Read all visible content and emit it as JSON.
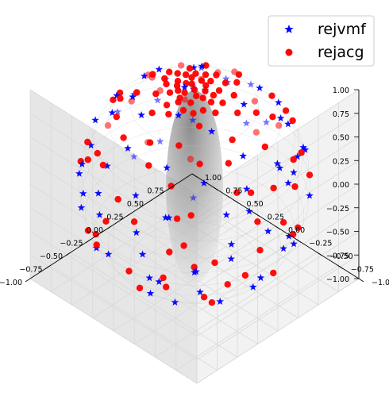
{
  "chart_data": {
    "type": "scatter",
    "projection": "3d",
    "title": "",
    "xlabel": "",
    "ylabel": "",
    "zlabel": "",
    "xlim": [
      -1.0,
      1.0
    ],
    "ylim": [
      -1.0,
      1.0
    ],
    "zlim": [
      -1.0,
      1.0
    ],
    "grid": true,
    "surface": "unit sphere (gray, semi-transparent)",
    "legend_position": "top-right",
    "x_ticks": [
      "−1.00",
      "−0.75",
      "−0.50",
      "−0.25",
      "0.00",
      "0.25",
      "0.50",
      "0.75",
      "1.00"
    ],
    "y_ticks": [
      "−1.00",
      "−0.75",
      "−0.50",
      "−0.25",
      "0.00",
      "0.25",
      "0.50",
      "0.75"
    ],
    "z_ticks": [
      "1.00",
      "0.75",
      "0.50",
      "0.25",
      "0.00",
      "−0.25",
      "−0.50",
      "−0.75",
      "−1.00"
    ],
    "series": [
      {
        "name": "rejvmf",
        "marker": "star",
        "color": "#0000ff",
        "points": [
          [
            0.02,
            0.01,
            0.99
          ],
          [
            0.1,
            -0.02,
            0.98
          ],
          [
            -0.05,
            0.08,
            0.98
          ],
          [
            0.55,
            -0.45,
            0.7
          ],
          [
            -0.5,
            0.55,
            0.67
          ],
          [
            0.7,
            0.1,
            0.7
          ],
          [
            -0.3,
            -0.65,
            0.7
          ],
          [
            0.15,
            0.85,
            0.5
          ],
          [
            -0.8,
            0.2,
            0.55
          ],
          [
            0.85,
            -0.35,
            0.4
          ],
          [
            0.4,
            0.82,
            0.4
          ],
          [
            -0.45,
            -0.82,
            0.35
          ],
          [
            0.92,
            0.2,
            0.33
          ],
          [
            -0.9,
            -0.25,
            0.35
          ],
          [
            0.25,
            -0.93,
            0.28
          ],
          [
            -0.2,
            0.95,
            0.22
          ],
          [
            0.97,
            0.05,
            0.2
          ],
          [
            -0.6,
            0.75,
            0.28
          ],
          [
            0.65,
            -0.72,
            0.25
          ],
          [
            0.5,
            0.6,
            0.62
          ],
          [
            -0.6,
            -0.5,
            0.62
          ],
          [
            0.3,
            0.3,
            0.9
          ],
          [
            -0.35,
            0.25,
            0.9
          ],
          [
            0.2,
            -0.45,
            0.87
          ],
          [
            -0.1,
            -0.3,
            0.95
          ],
          [
            0.78,
            0.45,
            0.43
          ],
          [
            -0.75,
            0.5,
            0.43
          ],
          [
            0.45,
            -0.3,
            0.84
          ],
          [
            -0.88,
            -0.45,
            0.1
          ],
          [
            0.95,
            -0.3,
            0.05
          ],
          [
            -0.3,
            -0.95,
            -0.05
          ],
          [
            0.3,
            0.95,
            -0.05
          ],
          [
            0.7,
            0.7,
            -0.1
          ],
          [
            -0.72,
            0.68,
            -0.1
          ],
          [
            0.6,
            -0.78,
            -0.15
          ],
          [
            -0.97,
            0.1,
            -0.2
          ],
          [
            0.92,
            0.2,
            -0.33
          ],
          [
            -0.25,
            0.9,
            -0.35
          ],
          [
            0.35,
            -0.85,
            -0.4
          ],
          [
            -0.65,
            -0.6,
            -0.45
          ],
          [
            0.75,
            -0.4,
            -0.52
          ],
          [
            -0.55,
            0.6,
            -0.58
          ],
          [
            0.15,
            0.8,
            -0.58
          ],
          [
            -0.8,
            -0.1,
            -0.59
          ],
          [
            0.5,
            0.5,
            -0.7
          ],
          [
            -0.3,
            -0.55,
            -0.78
          ],
          [
            0.6,
            -0.1,
            -0.79
          ],
          [
            -0.6,
            0.2,
            -0.77
          ],
          [
            0.2,
            -0.35,
            -0.91
          ],
          [
            -0.1,
            0.35,
            -0.93
          ],
          [
            0.05,
            0.05,
            -0.99
          ],
          [
            0.4,
            0.8,
            0.45
          ],
          [
            -0.85,
            0.35,
            0.4
          ],
          [
            0.12,
            -0.7,
            0.7
          ],
          [
            -0.15,
            0.65,
            0.74
          ],
          [
            0.62,
            0.2,
            0.76
          ],
          [
            -0.68,
            -0.1,
            0.73
          ],
          [
            0.88,
            0.45,
            0.15
          ],
          [
            -0.45,
            0.88,
            0.15
          ],
          [
            0.1,
            0.99,
            0.05
          ],
          [
            -0.98,
            -0.1,
            0.1
          ],
          [
            0.5,
            -0.86,
            0.1
          ],
          [
            0.8,
            -0.6,
            0.0
          ],
          [
            -0.7,
            -0.7,
            -0.15
          ],
          [
            0.2,
            0.6,
            -0.77
          ],
          [
            -0.4,
            -0.85,
            -0.34
          ],
          [
            0.85,
            0.45,
            -0.27
          ],
          [
            -0.9,
            0.3,
            -0.3
          ],
          [
            0.45,
            -0.6,
            -0.66
          ],
          [
            -0.2,
            -0.75,
            -0.63
          ],
          [
            0.68,
            0.68,
            0.28
          ],
          [
            -0.15,
            -0.88,
            0.45
          ],
          [
            0.3,
            0.4,
            0.86
          ],
          [
            -0.4,
            -0.2,
            0.89
          ],
          [
            0.72,
            -0.22,
            0.66
          ],
          [
            -0.25,
            0.78,
            0.57
          ],
          [
            0.55,
            0.25,
            -0.8
          ],
          [
            -0.55,
            -0.25,
            -0.8
          ],
          [
            0.95,
            -0.1,
            -0.28
          ],
          [
            -0.1,
            0.95,
            -0.3
          ]
        ]
      },
      {
        "name": "rejacg",
        "marker": "circle",
        "color": "#ff0000",
        "points": [
          [
            0.0,
            0.0,
            1.0
          ],
          [
            0.08,
            0.05,
            0.99
          ],
          [
            -0.06,
            -0.04,
            0.99
          ],
          [
            0.04,
            -0.08,
            0.99
          ],
          [
            -0.07,
            0.06,
            0.99
          ],
          [
            0.12,
            0.02,
            0.99
          ],
          [
            -0.02,
            0.12,
            0.99
          ],
          [
            0.1,
            -0.1,
            0.99
          ],
          [
            -0.12,
            -0.02,
            0.99
          ],
          [
            0.05,
            0.14,
            0.99
          ],
          [
            0.16,
            -0.05,
            0.98
          ],
          [
            -0.15,
            0.08,
            0.98
          ],
          [
            0.02,
            -0.16,
            0.99
          ],
          [
            -0.09,
            -0.14,
            0.99
          ],
          [
            0.15,
            0.12,
            0.98
          ],
          [
            0.2,
            0.0,
            0.98
          ],
          [
            0.0,
            0.2,
            0.98
          ],
          [
            -0.2,
            0.0,
            0.98
          ],
          [
            0.0,
            -0.2,
            0.98
          ],
          [
            0.14,
            -0.16,
            0.98
          ],
          [
            -0.14,
            0.16,
            0.98
          ],
          [
            0.22,
            0.12,
            0.97
          ],
          [
            -0.22,
            -0.12,
            0.97
          ],
          [
            0.1,
            0.24,
            0.97
          ],
          [
            -0.1,
            -0.24,
            0.97
          ],
          [
            0.26,
            -0.08,
            0.96
          ],
          [
            -0.26,
            0.08,
            0.96
          ],
          [
            0.18,
            0.2,
            0.96
          ],
          [
            -0.18,
            -0.2,
            0.96
          ],
          [
            0.06,
            -0.28,
            0.96
          ],
          [
            0.3,
            0.1,
            0.95
          ],
          [
            -0.3,
            -0.05,
            0.95
          ],
          [
            0.05,
            0.32,
            0.95
          ],
          [
            -0.08,
            0.3,
            0.95
          ],
          [
            0.25,
            -0.22,
            0.94
          ],
          [
            -0.24,
            0.24,
            0.94
          ],
          [
            0.34,
            -0.02,
            0.94
          ],
          [
            -0.02,
            -0.34,
            0.94
          ],
          [
            0.3,
            0.25,
            0.92
          ],
          [
            -0.3,
            -0.25,
            0.92
          ],
          [
            0.4,
            0.1,
            0.91
          ],
          [
            -0.4,
            0.12,
            0.91
          ],
          [
            0.12,
            -0.4,
            0.91
          ],
          [
            -0.1,
            0.42,
            0.9
          ],
          [
            0.45,
            -0.25,
            0.86
          ],
          [
            -0.45,
            0.3,
            0.84
          ],
          [
            0.3,
            0.45,
            0.84
          ],
          [
            -0.28,
            -0.48,
            0.83
          ],
          [
            0.55,
            0.05,
            0.83
          ],
          [
            -0.55,
            -0.1,
            0.83
          ],
          [
            0.05,
            0.6,
            0.8
          ],
          [
            -0.05,
            -0.6,
            0.8
          ],
          [
            0.55,
            0.4,
            0.73
          ],
          [
            -0.5,
            0.45,
            0.74
          ],
          [
            0.45,
            -0.5,
            0.74
          ],
          [
            -0.5,
            -0.45,
            0.74
          ],
          [
            0.7,
            -0.2,
            0.69
          ],
          [
            -0.7,
            0.15,
            0.7
          ],
          [
            0.2,
            0.7,
            0.69
          ],
          [
            -0.15,
            -0.72,
            0.68
          ],
          [
            0.8,
            0.3,
            0.52
          ],
          [
            -0.8,
            -0.3,
            0.52
          ],
          [
            0.3,
            -0.82,
            0.49
          ],
          [
            -0.3,
            0.82,
            0.49
          ],
          [
            0.88,
            -0.1,
            0.46
          ],
          [
            -0.9,
            0.05,
            0.43
          ],
          [
            0.6,
            0.7,
            0.39
          ],
          [
            -0.62,
            -0.68,
            0.39
          ],
          [
            0.7,
            -0.6,
            0.39
          ],
          [
            -0.7,
            0.6,
            0.39
          ],
          [
            0.95,
            0.2,
            0.24
          ],
          [
            -0.95,
            -0.2,
            0.24
          ],
          [
            0.2,
            0.95,
            0.24
          ],
          [
            -0.2,
            -0.95,
            0.24
          ],
          [
            0.99,
            -0.05,
            0.1
          ],
          [
            -0.99,
            0.08,
            0.1
          ],
          [
            0.1,
            -0.99,
            0.1
          ],
          [
            -0.05,
            0.99,
            0.1
          ],
          [
            0.75,
            0.65,
            0.12
          ],
          [
            -0.72,
            0.68,
            0.12
          ],
          [
            0.8,
            -0.58,
            0.12
          ],
          [
            -0.62,
            -0.77,
            0.12
          ],
          [
            0.9,
            0.35,
            -0.25
          ],
          [
            -0.9,
            -0.3,
            -0.3
          ],
          [
            0.3,
            -0.9,
            -0.31
          ],
          [
            -0.35,
            0.88,
            -0.32
          ],
          [
            0.65,
            0.62,
            -0.44
          ],
          [
            -0.6,
            0.6,
            -0.53
          ],
          [
            0.6,
            -0.6,
            -0.53
          ],
          [
            -0.65,
            -0.55,
            -0.53
          ],
          [
            0.82,
            -0.1,
            -0.56
          ],
          [
            -0.8,
            0.15,
            -0.58
          ],
          [
            0.1,
            0.8,
            -0.59
          ],
          [
            -0.12,
            -0.8,
            -0.59
          ],
          [
            0.5,
            0.3,
            -0.81
          ],
          [
            -0.5,
            -0.3,
            -0.81
          ],
          [
            0.3,
            -0.5,
            -0.81
          ],
          [
            -0.3,
            0.5,
            -0.81
          ],
          [
            0.35,
            0.05,
            -0.94
          ],
          [
            -0.3,
            0.1,
            -0.95
          ],
          [
            0.05,
            -0.3,
            -0.95
          ],
          [
            0.0,
            0.25,
            -0.97
          ],
          [
            0.1,
            0.1,
            -0.99
          ],
          [
            0.42,
            0.72,
            0.55
          ],
          [
            -0.78,
            0.42,
            0.46
          ],
          [
            0.6,
            -0.3,
            0.74
          ],
          [
            -0.4,
            -0.7,
            0.59
          ],
          [
            0.75,
            0.2,
            0.63
          ],
          [
            -0.2,
            0.75,
            0.63
          ],
          [
            0.22,
            -0.65,
            0.73
          ],
          [
            -0.65,
            -0.25,
            0.72
          ],
          [
            0.97,
            -0.2,
            -0.1
          ],
          [
            -0.95,
            0.3,
            -0.1
          ],
          [
            0.2,
            0.97,
            -0.1
          ],
          [
            0.45,
            -0.85,
            -0.27
          ],
          [
            -0.45,
            -0.85,
            -0.27
          ],
          [
            0.85,
            0.45,
            0.27
          ],
          [
            0.55,
            -0.75,
            0.37
          ],
          [
            -0.4,
            0.8,
            0.45
          ]
        ]
      }
    ]
  }
}
